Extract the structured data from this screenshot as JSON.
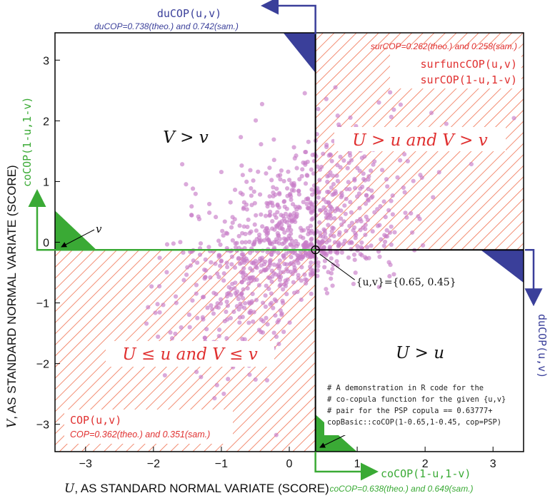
{
  "chart_data": {
    "type": "scatter",
    "xlim": [
      -3.45,
      3.45
    ],
    "ylim": [
      -3.45,
      3.45
    ],
    "xticks": [
      -3,
      -2,
      -1,
      0,
      1,
      2,
      3
    ],
    "yticks": [
      -3,
      -2,
      -1,
      0,
      1,
      2,
      3
    ],
    "xtick_labels": [
      "−3",
      "−2",
      "−1",
      "0",
      "1",
      "2",
      "3"
    ],
    "ytick_labels": [
      "−3",
      "−2",
      "−1",
      "0",
      "1",
      "2",
      "3"
    ],
    "xlabel_math": "U",
    "xlabel_text": ", AS STANDARD NORMAL VARIATE (SCORE)",
    "ylabel_math": "V",
    "ylabel_text": ", AS STANDARD NORMAL VARIATE (SCORE)",
    "point": {
      "u": 0.65,
      "v": 0.45,
      "x": 0.3853,
      "y": -0.1257
    },
    "point_label": "{u,v}={0.65, 0.45}",
    "label_u": "u",
    "label_v": "v",
    "regions": {
      "upper_left": "V > v",
      "upper_right": "U > u and V > v",
      "lower_right": "U > u",
      "lower_left": "U ≤ u and V ≤ v"
    },
    "annotations": {
      "ducop_top": "duCOP(u,v)",
      "ducop_top_value": "duCOP=0.738(theo.) and 0.742(sam.)",
      "ducop_right": "duCOP(u,v)",
      "surcop_value": "surCOP=0.262(theo.) and 0.258(sam.)",
      "surcop_line1": "surfuncCOP(u,v)",
      "surcop_line2": "surCOP(1-u,1-v)",
      "cocop_left": "coCOP(1-u,1-v)",
      "cocop_bottom": "coCOP(1-u,1-v)",
      "cocop_bottom_value": "coCOP=0.638(theo.) and 0.649(sam.)",
      "cop_label": "COP(u,v)",
      "cop_value": "COP=0.362(theo.) and 0.351(sam.)"
    },
    "code_lines": [
      "# A demonstration in R code for the",
      "# co-copula function for the given {u,v}",
      "# pair for the PSP copula == 0.63777+",
      "copBasic::coCOP(1-0.65,1-0.45, cop=PSP)"
    ],
    "series": [
      {
        "n_points": 1000,
        "copula": "PSP",
        "seed": 7
      }
    ],
    "colors": {
      "points": "#c77dc7",
      "hatch": "#f07050",
      "blue": "#3a3f9a",
      "green": "#3aaa35",
      "red_text": "#e03030",
      "frame": "#000000"
    }
  }
}
